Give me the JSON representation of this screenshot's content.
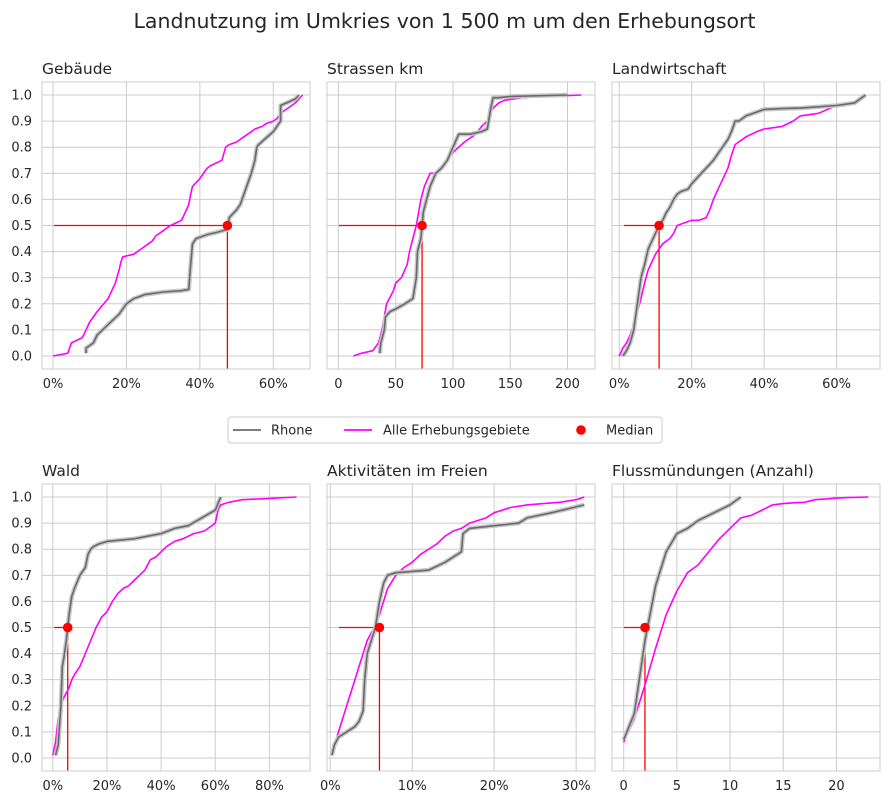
{
  "figure": {
    "suptitle": "Landnutzung im Umkries von 1 500 m um den Erhebungsort"
  },
  "legend": {
    "placement": "center, between rows",
    "items": [
      {
        "label": "Rhone",
        "color": "#696969",
        "kind": "line"
      },
      {
        "label": "Alle Erhebungsgebiete",
        "color": "#ff00ff",
        "kind": "line"
      },
      {
        "label": "Median",
        "color": "#ff0000",
        "kind": "dot"
      }
    ]
  },
  "chart_data": [
    {
      "type": "line",
      "title": "Gebäude",
      "xlim": [
        -3,
        70
      ],
      "ylim": [
        -0.05,
        1.05
      ],
      "xticks": [
        0,
        20,
        40,
        60
      ],
      "xtick_labels": [
        "0%",
        "20%",
        "40%",
        "60%"
      ],
      "yticks": [
        0,
        0.1,
        0.2,
        0.3,
        0.4,
        0.5,
        0.6,
        0.7,
        0.8,
        0.9,
        1.0
      ],
      "ytick_labels": [
        "0.0",
        "0.1",
        "0.2",
        "0.3",
        "0.4",
        "0.5",
        "0.6",
        "0.7",
        "0.8",
        "0.9",
        "1.0"
      ],
      "grid": true,
      "median": [
        47.5,
        0.5
      ],
      "series": [
        {
          "name": "Rhone",
          "color": "#696969",
          "x": [
            9,
            9,
            11,
            12,
            15,
            18,
            20,
            22,
            25,
            30,
            35,
            37,
            37.3,
            38,
            39,
            42,
            45,
            47.5,
            48,
            50,
            51,
            52,
            53,
            54,
            55,
            55.5,
            56,
            60,
            62,
            62,
            66,
            67
          ],
          "y": [
            0.01,
            0.03,
            0.05,
            0.08,
            0.12,
            0.16,
            0.2,
            0.22,
            0.235,
            0.245,
            0.25,
            0.255,
            0.32,
            0.43,
            0.45,
            0.465,
            0.475,
            0.485,
            0.53,
            0.56,
            0.58,
            0.62,
            0.66,
            0.7,
            0.75,
            0.8,
            0.81,
            0.86,
            0.9,
            0.96,
            0.985,
            1.0
          ]
        },
        {
          "name": "Alle Erhebungsgebiete",
          "color": "#ff00ff",
          "x": [
            0,
            4,
            5,
            8,
            9,
            10,
            12,
            15,
            17,
            18,
            18.5,
            19,
            22,
            24,
            27,
            28,
            30,
            32,
            35,
            36,
            37,
            37.5,
            38,
            40,
            42,
            43,
            46,
            47,
            48,
            50,
            52,
            54,
            55,
            57,
            58,
            60,
            61,
            62,
            64,
            66,
            68
          ],
          "y": [
            0.0,
            0.01,
            0.05,
            0.07,
            0.1,
            0.13,
            0.17,
            0.22,
            0.28,
            0.33,
            0.36,
            0.38,
            0.39,
            0.41,
            0.44,
            0.46,
            0.48,
            0.5,
            0.52,
            0.55,
            0.58,
            0.62,
            0.65,
            0.68,
            0.72,
            0.73,
            0.75,
            0.8,
            0.81,
            0.82,
            0.84,
            0.86,
            0.87,
            0.88,
            0.89,
            0.9,
            0.91,
            0.93,
            0.95,
            0.97,
            1.0
          ]
        }
      ]
    },
    {
      "type": "line",
      "title": "Strassen km",
      "xlim": [
        -10,
        224
      ],
      "ylim": [
        -0.05,
        1.05
      ],
      "xticks": [
        0,
        50,
        100,
        150,
        200
      ],
      "xtick_labels": [
        "0",
        "50",
        "100",
        "150",
        "200"
      ],
      "yticks": [
        0,
        0.1,
        0.2,
        0.3,
        0.4,
        0.5,
        0.6,
        0.7,
        0.8,
        0.9,
        1.0
      ],
      "ytick_labels": [],
      "grid": true,
      "median": [
        73,
        0.5
      ],
      "series": [
        {
          "name": "Rhone",
          "color": "#696969",
          "x": [
            36,
            37,
            40,
            41,
            45,
            50,
            58,
            65,
            68,
            69,
            72,
            73,
            74,
            77,
            80,
            85,
            90,
            95,
            100,
            105,
            110,
            115,
            120,
            125,
            130,
            133,
            135,
            140,
            150,
            200
          ],
          "y": [
            0.01,
            0.05,
            0.1,
            0.15,
            0.17,
            0.18,
            0.2,
            0.22,
            0.3,
            0.4,
            0.45,
            0.5,
            0.55,
            0.6,
            0.65,
            0.7,
            0.72,
            0.75,
            0.8,
            0.85,
            0.85,
            0.85,
            0.855,
            0.86,
            0.87,
            0.95,
            0.99,
            0.99,
            0.995,
            1.0
          ]
        },
        {
          "name": "Alle Erhebungsgebiete",
          "color": "#ff00ff",
          "x": [
            13,
            20,
            30,
            35,
            38,
            40,
            42,
            48,
            50,
            55,
            60,
            62,
            65,
            68,
            70,
            72,
            75,
            78,
            80,
            85,
            88,
            92,
            95,
            100,
            105,
            110,
            120,
            125,
            130,
            135,
            140,
            145,
            160,
            180,
            200,
            212
          ],
          "y": [
            0.0,
            0.01,
            0.02,
            0.05,
            0.1,
            0.15,
            0.2,
            0.25,
            0.28,
            0.3,
            0.35,
            0.4,
            0.45,
            0.5,
            0.55,
            0.6,
            0.65,
            0.68,
            0.7,
            0.7,
            0.72,
            0.73,
            0.75,
            0.78,
            0.8,
            0.82,
            0.85,
            0.88,
            0.9,
            0.95,
            0.97,
            0.98,
            0.99,
            0.995,
            0.998,
            1.0
          ]
        }
      ]
    },
    {
      "type": "line",
      "title": "Landwirtschaft",
      "xlim": [
        -2,
        72
      ],
      "ylim": [
        -0.05,
        1.05
      ],
      "xticks": [
        0,
        20,
        40,
        60
      ],
      "xtick_labels": [
        "0%",
        "20%",
        "40%",
        "60%"
      ],
      "yticks": [
        0,
        0.1,
        0.2,
        0.3,
        0.4,
        0.5,
        0.6,
        0.7,
        0.8,
        0.9,
        1.0
      ],
      "ytick_labels": [],
      "grid": true,
      "median": [
        11,
        0.5
      ],
      "series": [
        {
          "name": "Rhone",
          "color": "#696969",
          "x": [
            1,
            2,
            3,
            4,
            5,
            6,
            7,
            8,
            9,
            10,
            11,
            12,
            13,
            14,
            15,
            16,
            17,
            19,
            20,
            22,
            24,
            26,
            28,
            30,
            31,
            32,
            33,
            35,
            38,
            40,
            45,
            50,
            60,
            65,
            68
          ],
          "y": [
            0.0,
            0.02,
            0.05,
            0.1,
            0.2,
            0.3,
            0.35,
            0.41,
            0.44,
            0.47,
            0.5,
            0.52,
            0.55,
            0.57,
            0.6,
            0.62,
            0.63,
            0.64,
            0.66,
            0.69,
            0.72,
            0.75,
            0.79,
            0.83,
            0.86,
            0.9,
            0.9,
            0.92,
            0.935,
            0.945,
            0.948,
            0.95,
            0.96,
            0.97,
            1.0
          ]
        },
        {
          "name": "Alle Erhebungsgebiete",
          "color": "#ff00ff",
          "x": [
            0,
            1,
            2,
            3,
            4,
            5,
            6,
            7,
            8,
            9,
            10,
            11,
            12,
            14,
            15,
            16,
            18,
            20,
            22,
            24,
            25,
            26,
            27,
            28,
            29,
            30,
            31,
            32,
            35,
            38,
            40,
            45,
            48,
            50,
            55,
            60,
            65,
            68
          ],
          "y": [
            0.0,
            0.03,
            0.05,
            0.08,
            0.12,
            0.17,
            0.22,
            0.28,
            0.33,
            0.36,
            0.39,
            0.41,
            0.43,
            0.45,
            0.47,
            0.5,
            0.51,
            0.52,
            0.52,
            0.53,
            0.56,
            0.6,
            0.63,
            0.66,
            0.69,
            0.72,
            0.77,
            0.81,
            0.84,
            0.86,
            0.87,
            0.88,
            0.9,
            0.92,
            0.93,
            0.96,
            0.975,
            1.0
          ]
        }
      ]
    },
    {
      "type": "line",
      "title": "Wald",
      "xlim": [
        -4,
        95
      ],
      "ylim": [
        -0.05,
        1.05
      ],
      "xticks": [
        0,
        20,
        40,
        60,
        80
      ],
      "xtick_labels": [
        "0%",
        "20%",
        "40%",
        "60%",
        "80%"
      ],
      "yticks": [
        0,
        0.1,
        0.2,
        0.3,
        0.4,
        0.5,
        0.6,
        0.7,
        0.8,
        0.9,
        1.0
      ],
      "ytick_labels": [
        "0.0",
        "0.1",
        "0.2",
        "0.3",
        "0.4",
        "0.5",
        "0.6",
        "0.7",
        "0.8",
        "0.9",
        "1.0"
      ],
      "grid": true,
      "median": [
        5.5,
        0.5
      ],
      "series": [
        {
          "name": "Rhone",
          "color": "#696969",
          "x": [
            1,
            2,
            3,
            3.5,
            4,
            5,
            5.5,
            6,
            7,
            8,
            10,
            12,
            13,
            14,
            15,
            17,
            20,
            25,
            30,
            35,
            40,
            45,
            50,
            55,
            60,
            62
          ],
          "y": [
            0.01,
            0.05,
            0.2,
            0.35,
            0.38,
            0.45,
            0.5,
            0.55,
            0.62,
            0.65,
            0.7,
            0.73,
            0.78,
            0.8,
            0.81,
            0.82,
            0.83,
            0.835,
            0.84,
            0.85,
            0.86,
            0.88,
            0.89,
            0.92,
            0.95,
            1.0
          ]
        },
        {
          "name": "Alle Erhebungsgebiete",
          "color": "#ff00ff",
          "x": [
            0,
            1,
            2,
            3,
            4,
            5,
            6,
            7,
            8,
            10,
            12,
            14,
            16,
            18,
            20,
            22,
            24,
            26,
            28,
            30,
            32,
            34,
            36,
            38,
            40,
            42,
            45,
            48,
            52,
            56,
            60,
            61,
            62,
            65,
            70,
            80,
            90
          ],
          "y": [
            0.01,
            0.06,
            0.15,
            0.2,
            0.23,
            0.25,
            0.27,
            0.3,
            0.32,
            0.35,
            0.4,
            0.45,
            0.5,
            0.54,
            0.56,
            0.6,
            0.63,
            0.65,
            0.66,
            0.68,
            0.7,
            0.72,
            0.76,
            0.77,
            0.79,
            0.81,
            0.83,
            0.84,
            0.86,
            0.87,
            0.9,
            0.95,
            0.97,
            0.98,
            0.99,
            0.995,
            1.0
          ]
        }
      ]
    },
    {
      "type": "line",
      "title": "Aktivitäten im Freien",
      "xlim": [
        -0.4,
        32.3
      ],
      "ylim": [
        -0.05,
        1.05
      ],
      "xticks": [
        0,
        10,
        20,
        30
      ],
      "xtick_labels": [
        "0%",
        "10%",
        "20%",
        "30%"
      ],
      "yticks": [
        0,
        0.1,
        0.2,
        0.3,
        0.4,
        0.5,
        0.6,
        0.7,
        0.8,
        0.9,
        1.0
      ],
      "ytick_labels": [],
      "grid": true,
      "median": [
        6,
        0.5
      ],
      "series": [
        {
          "name": "Rhone",
          "color": "#696969",
          "x": [
            0.2,
            0.5,
            1,
            2,
            3,
            3.5,
            4,
            4.2,
            4.5,
            5,
            5.5,
            6,
            6.5,
            7,
            8,
            10,
            12,
            14,
            16,
            16.2,
            17,
            20,
            23,
            24,
            27,
            31
          ],
          "y": [
            0.01,
            0.05,
            0.08,
            0.1,
            0.12,
            0.14,
            0.18,
            0.3,
            0.4,
            0.45,
            0.5,
            0.6,
            0.67,
            0.7,
            0.71,
            0.715,
            0.72,
            0.75,
            0.79,
            0.86,
            0.88,
            0.89,
            0.9,
            0.92,
            0.94,
            0.97
          ]
        },
        {
          "name": "Alle Erhebungsgebiete",
          "color": "#ff00ff",
          "x": [
            0.2,
            0.5,
            1,
            1.5,
            2,
            2.5,
            3,
            3.5,
            4,
            4.5,
            5,
            5.5,
            6,
            6.5,
            7,
            8,
            9,
            10,
            11,
            12,
            13,
            14,
            15,
            16,
            17,
            18,
            19,
            20,
            22,
            24,
            26,
            28,
            30,
            31
          ],
          "y": [
            0.01,
            0.05,
            0.1,
            0.15,
            0.2,
            0.25,
            0.3,
            0.35,
            0.4,
            0.45,
            0.48,
            0.5,
            0.55,
            0.6,
            0.65,
            0.7,
            0.73,
            0.75,
            0.78,
            0.8,
            0.82,
            0.85,
            0.87,
            0.88,
            0.9,
            0.91,
            0.92,
            0.94,
            0.96,
            0.97,
            0.975,
            0.98,
            0.99,
            1.0
          ]
        }
      ]
    },
    {
      "type": "line",
      "title": "Flussmündungen (Anzahl)",
      "xlim": [
        -1.1,
        24.1
      ],
      "ylim": [
        -0.05,
        1.05
      ],
      "xticks": [
        0,
        5,
        10,
        15,
        20
      ],
      "xtick_labels": [
        "0",
        "5",
        "10",
        "15",
        "20"
      ],
      "yticks": [
        0,
        0.1,
        0.2,
        0.3,
        0.4,
        0.5,
        0.6,
        0.7,
        0.8,
        0.9,
        1.0
      ],
      "ytick_labels": [],
      "grid": true,
      "median": [
        2,
        0.5
      ],
      "series": [
        {
          "name": "Rhone",
          "color": "#696969",
          "x": [
            0,
            1,
            2,
            3,
            4,
            5,
            6,
            7,
            8,
            9,
            10,
            11
          ],
          "y": [
            0.07,
            0.17,
            0.45,
            0.66,
            0.79,
            0.86,
            0.88,
            0.91,
            0.93,
            0.95,
            0.97,
            1.0
          ]
        },
        {
          "name": "Alle Erhebungsgebiete",
          "color": "#ff00ff",
          "x": [
            0,
            1,
            2,
            3,
            4,
            5,
            6,
            7,
            8,
            9,
            10,
            11,
            12,
            13,
            14,
            15,
            16,
            17,
            18,
            19,
            20,
            21,
            22,
            23
          ],
          "y": [
            0.06,
            0.15,
            0.28,
            0.42,
            0.55,
            0.64,
            0.71,
            0.74,
            0.79,
            0.84,
            0.88,
            0.92,
            0.93,
            0.95,
            0.97,
            0.975,
            0.978,
            0.98,
            0.99,
            0.993,
            0.996,
            0.998,
            0.999,
            1.0
          ]
        }
      ]
    }
  ]
}
